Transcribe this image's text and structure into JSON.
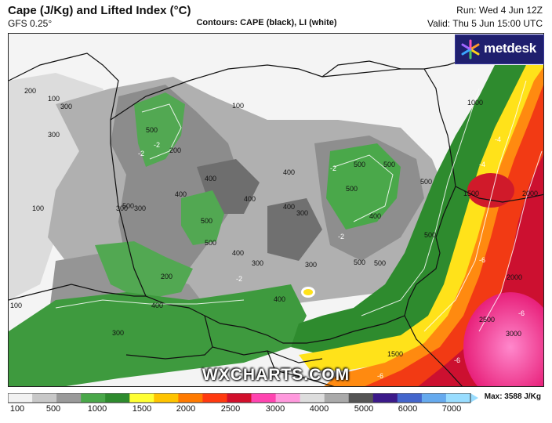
{
  "header": {
    "title": "Cape (J/Kg) and Lifted Index (°C)",
    "model": "GFS 0.25°",
    "contours": "Contours: CAPE (black), LI (white)",
    "run": "Run: Wed 4 Jun 12Z",
    "valid": "Valid: Thu 5 Jun 15:00 UTC"
  },
  "brand": {
    "logo": "metdesk",
    "watermark": "WXCHARTS.COM"
  },
  "colorbar": {
    "ticks": [
      "100",
      "500",
      "1000",
      "1500",
      "2000",
      "2500",
      "3000",
      "4000",
      "5000",
      "6000",
      "7000"
    ],
    "max_label": "Max: 3588 J/Kg",
    "colors": [
      "#f2f2f2",
      "#c8c8c8",
      "#9a9a9a",
      "#4aa84a",
      "#2e8b2e",
      "#ffff33",
      "#ffc400",
      "#ff7a00",
      "#ff3a10",
      "#d2102c",
      "#ff44b0",
      "#ff99dd",
      "#dddddd",
      "#aaaaaa",
      "#555555",
      "#3c1a8a",
      "#4466cc",
      "#66aaee",
      "#99ddff"
    ]
  },
  "map_labels": {
    "black": [
      "200",
      "100",
      "300",
      "300",
      "100",
      "100",
      "500",
      "200",
      "400",
      "400",
      "500",
      "300",
      "500",
      "400",
      "500",
      "400",
      "200",
      "500",
      "300",
      "300",
      "400",
      "400",
      "500",
      "400",
      "300",
      "300",
      "400",
      "400",
      "500",
      "500",
      "500",
      "300",
      "100",
      "1000",
      "1500",
      "2000",
      "2000",
      "2500",
      "3000",
      "1500",
      "500",
      "500"
    ],
    "white": [
      "-2",
      "-2",
      "-2",
      "-2",
      "-2",
      "-4",
      "-6",
      "-6",
      "-6",
      "-4",
      "-6"
    ]
  }
}
